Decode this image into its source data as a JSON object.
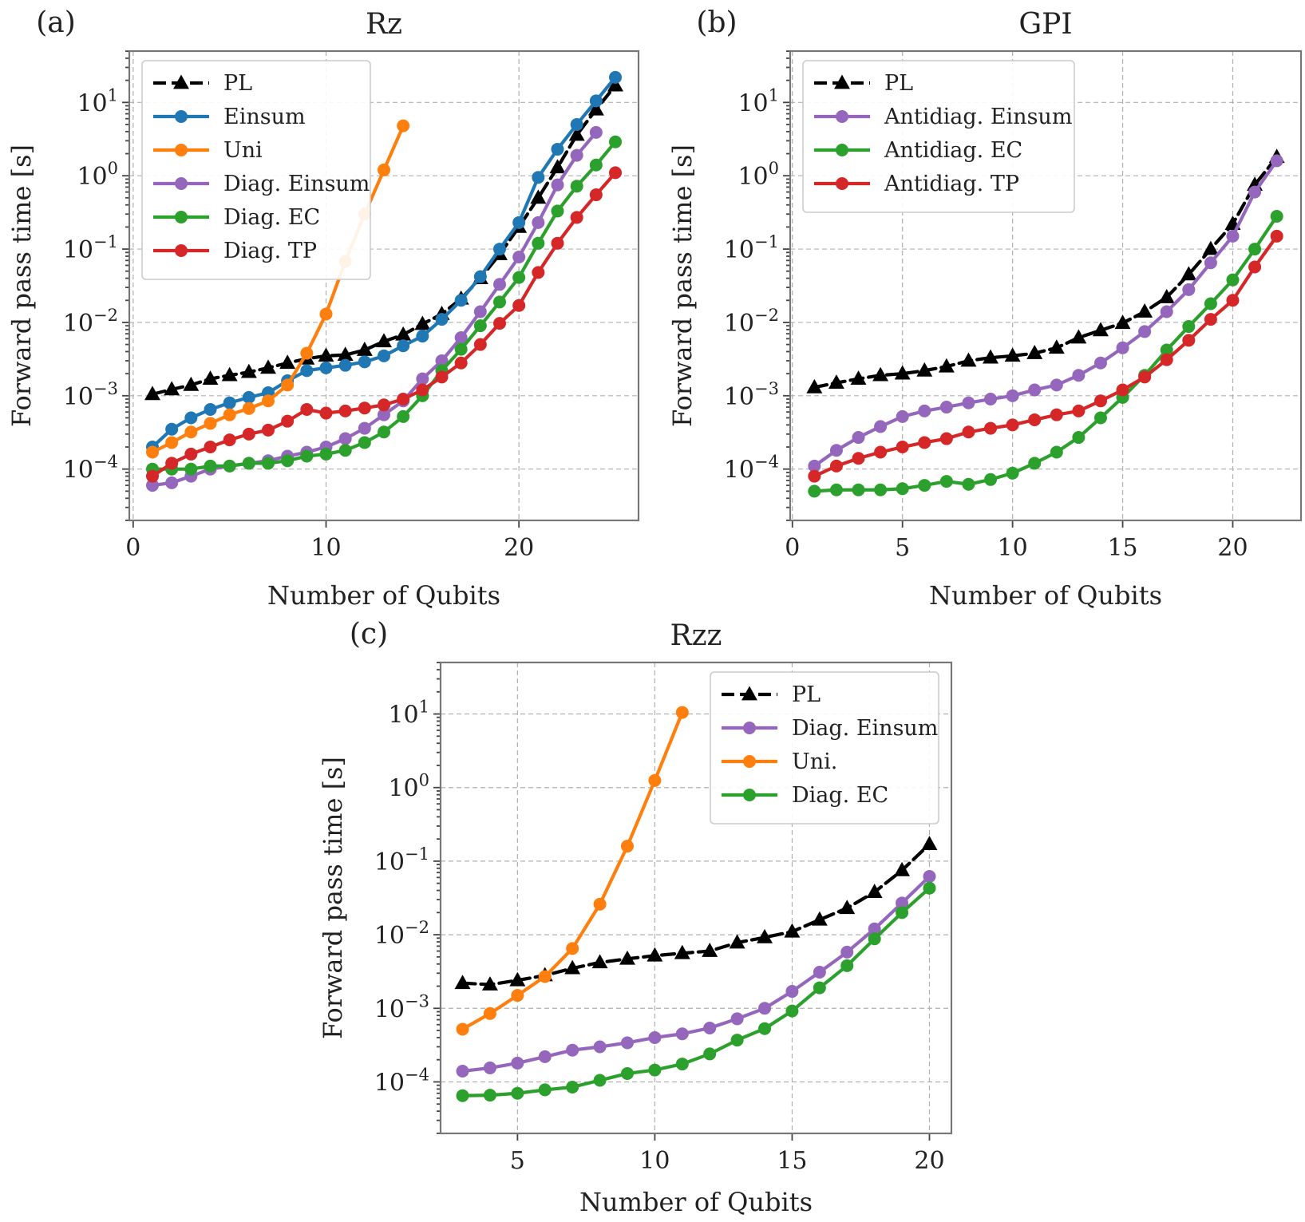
{
  "figure": {
    "panels": [
      {
        "letter": "(a)",
        "title": "Rz"
      },
      {
        "letter": "(b)",
        "title": "GPI"
      },
      {
        "letter": "(c)",
        "title": "Rzz"
      }
    ]
  },
  "chart_data": [
    {
      "id": "a",
      "type": "line",
      "title": "Rz",
      "panel_label": "(a)",
      "xlabel": "Number of Qubits",
      "ylabel": "Forward pass time [s]",
      "yscale": "log",
      "xlim": [
        -0.2,
        26.2
      ],
      "ylim_log10": [
        -4.7,
        1.7
      ],
      "xticks": [
        0,
        10,
        20
      ],
      "xtick_labels": [
        "0",
        "10",
        "20"
      ],
      "yticks_log10": [
        -4,
        -3,
        -2,
        -1,
        0,
        1
      ],
      "ytick_labels": [
        [
          "10",
          "−4"
        ],
        [
          "10",
          "−3"
        ],
        [
          "10",
          "−2"
        ],
        [
          "10",
          "−1"
        ],
        [
          "10",
          "0"
        ],
        [
          "10",
          "1"
        ]
      ],
      "legend_position": "upper-left",
      "series": [
        {
          "name": "PL",
          "color": "#000000",
          "marker": "triangle",
          "dashed": true,
          "x": [
            1,
            2,
            3,
            4,
            5,
            6,
            7,
            8,
            9,
            10,
            11,
            12,
            13,
            14,
            15,
            16,
            17,
            18,
            19,
            20,
            21,
            22,
            23,
            24,
            25
          ],
          "y": [
            0.00105,
            0.00122,
            0.0014,
            0.0017,
            0.0019,
            0.0021,
            0.0024,
            0.0028,
            0.0032,
            0.0035,
            0.0036,
            0.0042,
            0.0055,
            0.0068,
            0.0095,
            0.013,
            0.021,
            0.04,
            0.085,
            0.2,
            0.5,
            1.3,
            3.6,
            8.0,
            17.0
          ]
        },
        {
          "name": "Einsum",
          "color": "#1f77b4",
          "marker": "circle",
          "dashed": false,
          "x": [
            1,
            2,
            3,
            4,
            5,
            6,
            7,
            8,
            9,
            10,
            11,
            12,
            13,
            14,
            15,
            16,
            17,
            18,
            19,
            20,
            21,
            22,
            23,
            24,
            25
          ],
          "y": [
            0.0002,
            0.00035,
            0.0005,
            0.00065,
            0.0008,
            0.00095,
            0.0011,
            0.0016,
            0.0022,
            0.0024,
            0.0026,
            0.0029,
            0.0035,
            0.0048,
            0.0065,
            0.011,
            0.02,
            0.042,
            0.1,
            0.23,
            0.95,
            2.3,
            5.0,
            10.5,
            22.0
          ]
        },
        {
          "name": "Uni",
          "color": "#ff7f0e",
          "marker": "circle",
          "dashed": false,
          "x": [
            1,
            2,
            3,
            4,
            5,
            6,
            7,
            8,
            9,
            10,
            11,
            12,
            13,
            14
          ],
          "y": [
            0.00017,
            0.00023,
            0.00032,
            0.00042,
            0.00055,
            0.00067,
            0.00085,
            0.0014,
            0.0038,
            0.013,
            0.068,
            0.3,
            1.2,
            4.8
          ]
        },
        {
          "name": "Diag. Einsum",
          "color": "#9467bd",
          "marker": "circle",
          "dashed": false,
          "x": [
            1,
            2,
            3,
            4,
            5,
            6,
            7,
            8,
            9,
            10,
            11,
            12,
            13,
            14,
            15,
            16,
            17,
            18,
            19,
            20,
            21,
            22,
            23,
            24
          ],
          "y": [
            6e-05,
            6.5e-05,
            8e-05,
            0.0001,
            0.00011,
            0.00012,
            0.00013,
            0.00015,
            0.00017,
            0.0002,
            0.00026,
            0.00036,
            0.00055,
            0.00085,
            0.0017,
            0.003,
            0.0062,
            0.014,
            0.033,
            0.078,
            0.23,
            0.75,
            1.9,
            3.9
          ]
        },
        {
          "name": "Diag. EC",
          "color": "#2ca02c",
          "marker": "circle",
          "dashed": false,
          "x": [
            1,
            2,
            3,
            4,
            5,
            6,
            7,
            8,
            9,
            10,
            11,
            12,
            13,
            14,
            15,
            16,
            17,
            18,
            19,
            20,
            21,
            22,
            23,
            24,
            25
          ],
          "y": [
            0.0001,
            0.0001,
            0.0001,
            0.00011,
            0.00011,
            0.00012,
            0.00012,
            0.00013,
            0.00015,
            0.00016,
            0.00018,
            0.00023,
            0.00032,
            0.00052,
            0.001,
            0.0022,
            0.0043,
            0.009,
            0.019,
            0.041,
            0.12,
            0.33,
            0.72,
            1.4,
            2.9
          ]
        },
        {
          "name": "Diag. TP",
          "color": "#d62728",
          "marker": "circle",
          "dashed": false,
          "x": [
            1,
            2,
            3,
            4,
            5,
            6,
            7,
            8,
            9,
            10,
            11,
            12,
            13,
            14,
            15,
            16,
            17,
            18,
            19,
            20,
            21,
            22,
            23,
            24,
            25
          ],
          "y": [
            8e-05,
            0.00012,
            0.00016,
            0.0002,
            0.00025,
            0.0003,
            0.00034,
            0.00045,
            0.00065,
            0.00058,
            0.00062,
            0.00068,
            0.00075,
            0.0009,
            0.0012,
            0.0018,
            0.0028,
            0.005,
            0.0097,
            0.017,
            0.048,
            0.12,
            0.27,
            0.55,
            1.1
          ]
        }
      ]
    },
    {
      "id": "b",
      "type": "line",
      "title": "GPI",
      "panel_label": "(b)",
      "xlabel": "Number of Qubits",
      "ylabel": "Forward pass time [s]",
      "yscale": "log",
      "xlim": [
        -0.1,
        23.1
      ],
      "ylim_log10": [
        -4.7,
        1.7
      ],
      "xticks": [
        0,
        5,
        10,
        15,
        20
      ],
      "xtick_labels": [
        "0",
        "5",
        "10",
        "15",
        "20"
      ],
      "yticks_log10": [
        -4,
        -3,
        -2,
        -1,
        0,
        1
      ],
      "ytick_labels": [
        [
          "10",
          "−4"
        ],
        [
          "10",
          "−3"
        ],
        [
          "10",
          "−2"
        ],
        [
          "10",
          "−1"
        ],
        [
          "10",
          "0"
        ],
        [
          "10",
          "1"
        ]
      ],
      "legend_position": "upper-left",
      "series": [
        {
          "name": "PL",
          "color": "#000000",
          "marker": "triangle",
          "dashed": true,
          "x": [
            1,
            2,
            3,
            4,
            5,
            6,
            7,
            8,
            9,
            10,
            11,
            12,
            13,
            14,
            15,
            16,
            17,
            18,
            19,
            20,
            21,
            22
          ],
          "y": [
            0.0013,
            0.0015,
            0.0017,
            0.0019,
            0.002,
            0.0022,
            0.0025,
            0.003,
            0.0033,
            0.0035,
            0.0038,
            0.0045,
            0.0062,
            0.0078,
            0.0098,
            0.014,
            0.022,
            0.045,
            0.1,
            0.22,
            0.75,
            1.8
          ]
        },
        {
          "name": "Antidiag. Einsum",
          "color": "#9467bd",
          "marker": "circle",
          "dashed": false,
          "x": [
            1,
            2,
            3,
            4,
            5,
            6,
            7,
            8,
            9,
            10,
            11,
            12,
            13,
            14,
            15,
            16,
            17,
            18,
            19,
            20,
            21,
            22
          ],
          "y": [
            0.00011,
            0.00018,
            0.00027,
            0.00038,
            0.00052,
            0.00062,
            0.0007,
            0.0008,
            0.0009,
            0.001,
            0.0012,
            0.0014,
            0.0019,
            0.0028,
            0.0045,
            0.0075,
            0.014,
            0.028,
            0.065,
            0.15,
            0.6,
            1.6
          ]
        },
        {
          "name": "Antidiag. EC",
          "color": "#2ca02c",
          "marker": "circle",
          "dashed": false,
          "x": [
            1,
            2,
            3,
            4,
            5,
            6,
            7,
            8,
            9,
            10,
            11,
            12,
            13,
            14,
            15,
            16,
            17,
            18,
            19,
            20,
            21,
            22
          ],
          "y": [
            5e-05,
            5.2e-05,
            5.2e-05,
            5.2e-05,
            5.4e-05,
            6e-05,
            6.8e-05,
            6.2e-05,
            7.2e-05,
            8.8e-05,
            0.00012,
            0.00017,
            0.00027,
            0.0005,
            0.00095,
            0.0019,
            0.0042,
            0.0088,
            0.018,
            0.038,
            0.1,
            0.28
          ]
        },
        {
          "name": "Antidiag. TP",
          "color": "#d62728",
          "marker": "circle",
          "dashed": false,
          "x": [
            1,
            2,
            3,
            4,
            5,
            6,
            7,
            8,
            9,
            10,
            11,
            12,
            13,
            14,
            15,
            16,
            17,
            18,
            19,
            20,
            21,
            22
          ],
          "y": [
            8e-05,
            0.00011,
            0.00014,
            0.00017,
            0.0002,
            0.00023,
            0.00026,
            0.00032,
            0.00036,
            0.0004,
            0.00047,
            0.00055,
            0.00062,
            0.00085,
            0.0012,
            0.0018,
            0.0031,
            0.0057,
            0.011,
            0.02,
            0.057,
            0.15
          ]
        }
      ]
    },
    {
      "id": "c",
      "type": "line",
      "title": "Rzz",
      "panel_label": "(c)",
      "xlabel": "Number of Qubits",
      "ylabel": "Forward pass time [s]",
      "yscale": "log",
      "xlim": [
        2.2,
        20.8
      ],
      "ylim_log10": [
        -4.7,
        1.7
      ],
      "xticks": [
        5,
        10,
        15,
        20
      ],
      "xtick_labels": [
        "5",
        "10",
        "15",
        "20"
      ],
      "yticks_log10": [
        -4,
        -3,
        -2,
        -1,
        0,
        1
      ],
      "ytick_labels": [
        [
          "10",
          "−4"
        ],
        [
          "10",
          "−3"
        ],
        [
          "10",
          "−2"
        ],
        [
          "10",
          "−1"
        ],
        [
          "10",
          "0"
        ],
        [
          "10",
          "1"
        ]
      ],
      "legend_position": "upper-right",
      "series": [
        {
          "name": "PL",
          "color": "#000000",
          "marker": "triangle",
          "dashed": true,
          "x": [
            3,
            4,
            5,
            6,
            7,
            8,
            9,
            10,
            11,
            12,
            13,
            14,
            15,
            16,
            17,
            18,
            19,
            20
          ],
          "y": [
            0.0022,
            0.0021,
            0.0024,
            0.0028,
            0.0035,
            0.0042,
            0.0047,
            0.0052,
            0.0056,
            0.006,
            0.0078,
            0.0092,
            0.011,
            0.016,
            0.023,
            0.038,
            0.075,
            0.17
          ]
        },
        {
          "name": "Diag. Einsum",
          "color": "#9467bd",
          "marker": "circle",
          "dashed": false,
          "x": [
            3,
            4,
            5,
            6,
            7,
            8,
            9,
            10,
            11,
            12,
            13,
            14,
            15,
            16,
            17,
            18,
            19,
            20
          ],
          "y": [
            0.00014,
            0.000155,
            0.00018,
            0.00022,
            0.00027,
            0.0003,
            0.00034,
            0.0004,
            0.00045,
            0.00054,
            0.00072,
            0.001,
            0.0017,
            0.0031,
            0.0058,
            0.012,
            0.027,
            0.062
          ]
        },
        {
          "name": "Uni.",
          "color": "#ff7f0e",
          "marker": "circle",
          "dashed": false,
          "x": [
            3,
            4,
            5,
            6,
            7,
            8,
            9,
            10,
            11
          ],
          "y": [
            0.00052,
            0.00085,
            0.0015,
            0.0027,
            0.0065,
            0.026,
            0.16,
            1.25,
            10.5
          ]
        },
        {
          "name": "Diag. EC",
          "color": "#2ca02c",
          "marker": "circle",
          "dashed": false,
          "x": [
            3,
            4,
            5,
            6,
            7,
            8,
            9,
            10,
            11,
            12,
            13,
            14,
            15,
            16,
            17,
            18,
            19,
            20
          ],
          "y": [
            6.5e-05,
            6.6e-05,
            7e-05,
            7.8e-05,
            8.5e-05,
            0.000105,
            0.00013,
            0.000145,
            0.000175,
            0.00024,
            0.00037,
            0.00053,
            0.00092,
            0.0019,
            0.0038,
            0.0088,
            0.02,
            0.043
          ]
        }
      ]
    }
  ]
}
